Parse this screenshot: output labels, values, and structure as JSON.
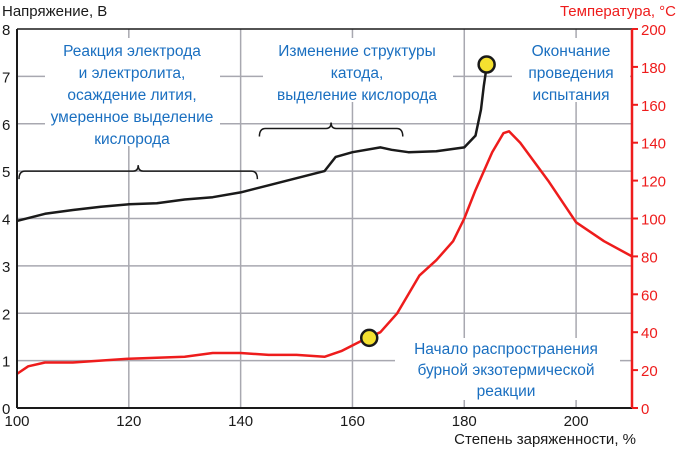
{
  "chart_data": {
    "type": "line",
    "xlabel": "Степень заряженности, %",
    "ylabel": "Напряжение, В",
    "ylabel_right": "Температура, °C",
    "xlim": [
      100,
      210
    ],
    "ylim": [
      0,
      8
    ],
    "ylim_right": [
      0,
      200
    ],
    "x_ticks": [
      "100",
      "120",
      "140",
      "160",
      "180",
      "200"
    ],
    "y_ticks": [
      "0",
      "1",
      "2",
      "3",
      "4",
      "5",
      "6",
      "7",
      "8"
    ],
    "y_right_ticks": [
      "0",
      "20",
      "40",
      "60",
      "80",
      "100",
      "120",
      "140",
      "160",
      "180",
      "200"
    ],
    "grid": true,
    "colors": {
      "voltage": "#1a1a1a",
      "temperature": "#ee1c1c",
      "annotation": "#1a6fc0",
      "marker": "#f5e130"
    },
    "series": [
      {
        "name": "Напряжение",
        "axis": "left",
        "x": [
          100,
          105,
          110,
          115,
          120,
          125,
          130,
          135,
          140,
          145,
          150,
          155,
          157,
          160,
          165,
          167,
          170,
          175,
          180,
          182,
          183,
          183.5,
          184
        ],
        "y": [
          3.95,
          4.1,
          4.18,
          4.25,
          4.3,
          4.32,
          4.4,
          4.45,
          4.55,
          4.7,
          4.85,
          5.0,
          5.3,
          5.4,
          5.5,
          5.45,
          5.4,
          5.42,
          5.5,
          5.75,
          6.3,
          6.8,
          7.2
        ]
      },
      {
        "name": "Температура",
        "axis": "right",
        "x": [
          100,
          102,
          105,
          110,
          120,
          130,
          135,
          140,
          145,
          150,
          155,
          158,
          162,
          165,
          168,
          170,
          172,
          175,
          178,
          180,
          182,
          185,
          187,
          188,
          190,
          195,
          200,
          205,
          210
        ],
        "y": [
          18,
          22,
          24,
          24,
          26,
          27,
          29,
          29,
          28,
          28,
          27,
          30,
          36,
          40,
          50,
          60,
          70,
          78,
          88,
          100,
          115,
          135,
          145,
          146,
          140,
          120,
          98,
          88,
          80
        ]
      }
    ],
    "markers": [
      {
        "label": "end",
        "x": 184,
        "y_axis": "left",
        "y": 7.25
      },
      {
        "label": "start",
        "x": 163,
        "y_axis": "right",
        "y": 37
      }
    ],
    "braces": [
      {
        "x": [
          100,
          143
        ],
        "y": 5.0
      },
      {
        "x": [
          143,
          169
        ],
        "y": 5.9
      }
    ],
    "annotations": [
      {
        "lines": [
          "Реакция электрода",
          "и электролита,",
          "осаждение лития,",
          "умеренное выделение",
          "кислорода"
        ]
      },
      {
        "lines": [
          "Изменение структуры",
          "катода,",
          "выделение кислорода"
        ]
      },
      {
        "lines": [
          "Окончание",
          "проведения",
          "испытания"
        ]
      },
      {
        "lines": [
          "Начало распространения",
          "бурной экзотермической",
          "реакции"
        ]
      }
    ]
  }
}
